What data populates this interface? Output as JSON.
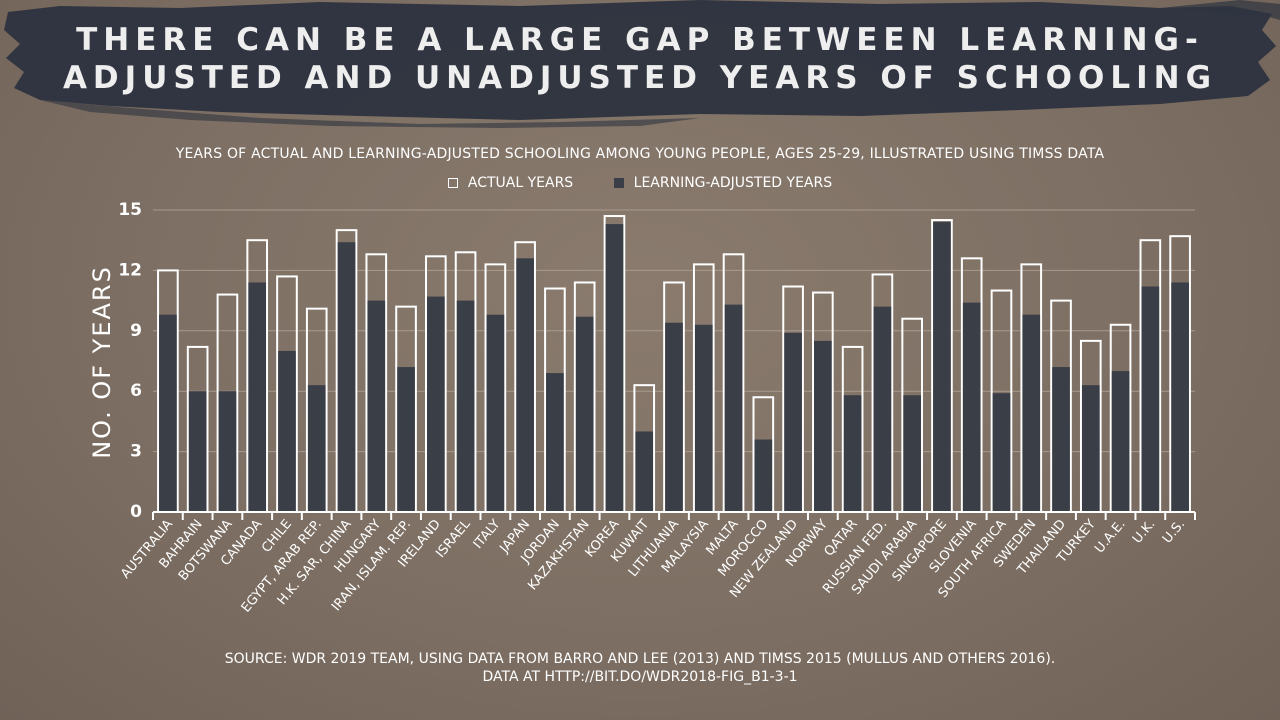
{
  "title": {
    "line1": "THERE CAN BE A LARGE GAP BETWEEN LEARNING-",
    "line2": "ADJUSTED AND UNADJUSTED YEARS OF SCHOOLING"
  },
  "source": {
    "line1": "SOURCE: WDR 2019 TEAM, USING DATA FROM BARRO AND LEE (2013) AND TIMSS 2015 (MULLUS AND OTHERS 2016).",
    "line2": "DATA AT HTTP://BIT.DO/WDR2018-FIG_B1-3-1"
  },
  "colors": {
    "background": "#7d6f63",
    "brush": "#2e3440",
    "adjusted_bar": "#3a3e47",
    "actual_outline": "#ffffff"
  },
  "chart_data": {
    "type": "bar",
    "subtitle": "YEARS OF ACTUAL AND LEARNING-ADJUSTED SCHOOLING AMONG YOUNG PEOPLE, AGES 25-29, ILLUSTRATED USING TIMSS DATA",
    "ylabel": "NO. OF YEARS",
    "xlabel": "",
    "ylim": [
      0,
      15
    ],
    "yticks": [
      0,
      3,
      6,
      9,
      12,
      15
    ],
    "grid": true,
    "legend_position": "top",
    "categories": [
      "AUSTRALIA",
      "BAHRAIN",
      "BOTSWANA",
      "CANADA",
      "CHILE",
      "EGYPT, ARAB REP.",
      "H.K. SAR, CHINA",
      "HUNGARY",
      "IRAN, ISLAM. REP.",
      "IRELAND",
      "ISRAEL",
      "ITALY",
      "JAPAN",
      "JORDAN",
      "KAZAKHSTAN",
      "KOREA",
      "KUWAIT",
      "LITHUANIA",
      "MALAYSIA",
      "MALTA",
      "MOROCCO",
      "NEW ZEALAND",
      "NORWAY",
      "QATAR",
      "RUSSIAN FED.",
      "SAUDI ARABIA",
      "SINGAPORE",
      "SLOVENIA",
      "SOUTH AFRICA",
      "SWEDEN",
      "THAILAND",
      "TURKEY",
      "U.A.E.",
      "U.K.",
      "U.S."
    ],
    "series": [
      {
        "name": "ACTUAL YEARS",
        "style": "outline",
        "values": [
          12.0,
          8.2,
          10.8,
          13.5,
          11.7,
          10.1,
          14.0,
          12.8,
          10.2,
          12.7,
          12.9,
          12.3,
          13.4,
          11.1,
          11.4,
          14.7,
          6.3,
          11.4,
          12.3,
          12.8,
          5.7,
          11.2,
          10.9,
          8.2,
          11.8,
          9.6,
          14.5,
          12.6,
          11.0,
          12.3,
          10.5,
          8.5,
          9.3,
          13.5,
          13.7
        ]
      },
      {
        "name": "LEARNING-ADJUSTED YEARS",
        "style": "filled",
        "values": [
          9.8,
          6.0,
          6.0,
          11.4,
          8.0,
          6.3,
          13.4,
          10.5,
          7.2,
          10.7,
          10.5,
          9.8,
          12.6,
          6.9,
          9.7,
          14.3,
          4.0,
          9.4,
          9.3,
          10.3,
          3.6,
          8.9,
          8.5,
          5.8,
          10.2,
          5.8,
          14.4,
          10.4,
          5.9,
          9.8,
          7.2,
          6.3,
          7.0,
          11.2,
          11.4
        ]
      }
    ]
  }
}
